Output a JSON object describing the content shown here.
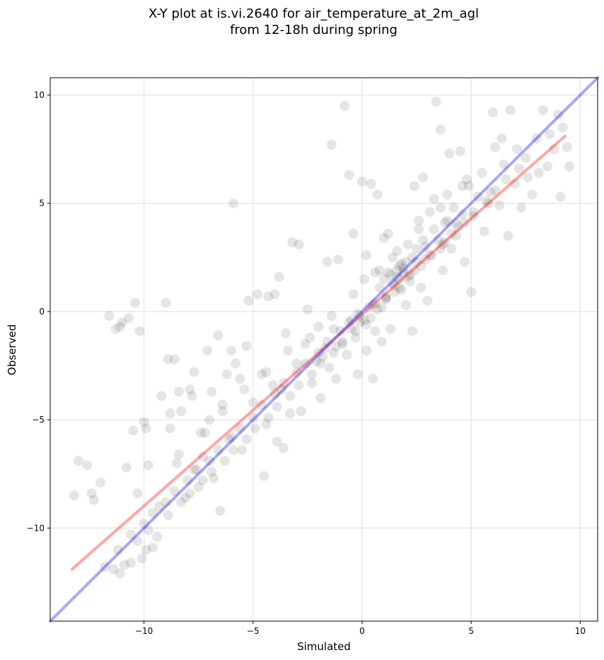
{
  "chart_data": {
    "type": "scatter",
    "title": "X-Y plot at is.vi.2640 for air_temperature_at_2m_agl",
    "subtitle": "from 12-18h during spring",
    "xlabel": "Simulated",
    "ylabel": "Observed",
    "xlim": [
      -14.3,
      10.8
    ],
    "ylim": [
      -14.3,
      10.8
    ],
    "xticks": [
      -10,
      -5,
      0,
      5,
      10
    ],
    "yticks": [
      -10,
      -5,
      0,
      5,
      10
    ],
    "xtick_labels": [
      "−10",
      "−5",
      "0",
      "5",
      "10"
    ],
    "ytick_labels": [
      "−10",
      "−5",
      "0",
      "5",
      "10"
    ],
    "grid": true,
    "point_color": "#000000",
    "point_opacity": 0.1,
    "series": [
      {
        "type": "scatter",
        "points": [
          [
            -13.2,
            -8.5
          ],
          [
            -13.0,
            -6.9
          ],
          [
            -12.6,
            -7.1
          ],
          [
            -12.4,
            -8.4
          ],
          [
            -12.3,
            -8.7
          ],
          [
            -12.0,
            -7.9
          ],
          [
            -11.8,
            -11.8
          ],
          [
            -11.6,
            -0.2
          ],
          [
            -11.4,
            -11.9
          ],
          [
            -11.3,
            -0.8
          ],
          [
            -11.1,
            -12.1
          ],
          [
            -11.1,
            -0.7
          ],
          [
            -11.0,
            -0.5
          ],
          [
            -10.9,
            -11.7
          ],
          [
            -10.8,
            -7.2
          ],
          [
            -10.7,
            -0.3
          ],
          [
            -10.6,
            -11.6
          ],
          [
            -10.5,
            -5.5
          ],
          [
            -10.4,
            0.4
          ],
          [
            -10.3,
            -8.4
          ],
          [
            -10.2,
            -0.9
          ],
          [
            -10.1,
            -11.4
          ],
          [
            -10.0,
            -5.1
          ],
          [
            -9.9,
            -11.0
          ],
          [
            -9.9,
            -5.4
          ],
          [
            -9.8,
            -7.1
          ],
          [
            -9.6,
            -10.9
          ],
          [
            -9.4,
            -10.4
          ],
          [
            -9.3,
            -9.0
          ],
          [
            -9.2,
            -3.9
          ],
          [
            -9.0,
            0.4
          ],
          [
            -8.9,
            -2.2
          ],
          [
            -8.8,
            -4.7
          ],
          [
            -8.8,
            -5.4
          ],
          [
            -8.6,
            -2.2
          ],
          [
            -8.5,
            -7.0
          ],
          [
            -8.4,
            -3.7
          ],
          [
            -8.3,
            -4.6
          ],
          [
            -8.1,
            -8.6
          ],
          [
            -7.9,
            -3.6
          ],
          [
            -7.8,
            -3.9
          ],
          [
            -7.7,
            -7.3
          ],
          [
            -7.7,
            -2.8
          ],
          [
            -7.5,
            -8.1
          ],
          [
            -7.3,
            -6.7
          ],
          [
            -7.2,
            -5.6
          ],
          [
            -7.1,
            -1.8
          ],
          [
            -7.0,
            -5.0
          ],
          [
            -6.9,
            -3.7
          ],
          [
            -6.8,
            -7.7
          ],
          [
            -6.6,
            -1.1
          ],
          [
            -6.5,
            -9.2
          ],
          [
            -6.4,
            -4.3
          ],
          [
            -6.2,
            -2.9
          ],
          [
            -6.1,
            -5.9
          ],
          [
            -6.0,
            -1.8
          ],
          [
            -5.9,
            5.0
          ],
          [
            -5.8,
            -2.4
          ],
          [
            -5.6,
            -3.1
          ],
          [
            -5.5,
            -6.4
          ],
          [
            -5.3,
            -1.6
          ],
          [
            -5.2,
            0.5
          ],
          [
            -5.0,
            -4.2
          ],
          [
            -4.8,
            0.8
          ],
          [
            -4.6,
            -2.9
          ],
          [
            -4.5,
            -7.6
          ],
          [
            -4.4,
            -5.2
          ],
          [
            -4.3,
            0.7
          ],
          [
            -4.1,
            -3.4
          ],
          [
            -4.0,
            0.8
          ],
          [
            -3.9,
            -6.0
          ],
          [
            -3.8,
            1.6
          ],
          [
            -3.7,
            -3.6
          ],
          [
            -3.6,
            -6.3
          ],
          [
            -3.5,
            -1.0
          ],
          [
            -3.3,
            -4.7
          ],
          [
            -3.2,
            3.2
          ],
          [
            -3.0,
            -2.4
          ],
          [
            -2.9,
            3.1
          ],
          [
            -2.8,
            -4.6
          ],
          [
            -2.6,
            -1.5
          ],
          [
            -2.5,
            0.1
          ],
          [
            -2.3,
            -3.3
          ],
          [
            -2.1,
            -2.3
          ],
          [
            -2.0,
            -0.7
          ],
          [
            -1.9,
            -4.0
          ],
          [
            -1.7,
            -1.7
          ],
          [
            -1.6,
            2.3
          ],
          [
            -1.5,
            -2.6
          ],
          [
            -1.4,
            7.7
          ],
          [
            -1.3,
            -0.8
          ],
          [
            -1.2,
            -3.1
          ],
          [
            -1.1,
            2.4
          ],
          [
            -0.9,
            -1.5
          ],
          [
            -0.8,
            9.5
          ],
          [
            -0.7,
            -2.0
          ],
          [
            -0.6,
            6.3
          ],
          [
            -0.5,
            -0.4
          ],
          [
            -0.4,
            3.6
          ],
          [
            -0.3,
            -1.2
          ],
          [
            -0.2,
            -2.9
          ],
          [
            -0.1,
            -0.5
          ],
          [
            0.0,
            6.0
          ],
          [
            0.1,
            1.5
          ],
          [
            0.2,
            -1.8
          ],
          [
            0.3,
            0.2
          ],
          [
            0.4,
            5.9
          ],
          [
            0.5,
            -3.1
          ],
          [
            0.6,
            -0.9
          ],
          [
            0.7,
            5.4
          ],
          [
            0.8,
            1.1
          ],
          [
            0.9,
            -1.4
          ],
          [
            1.0,
            3.4
          ],
          [
            1.1,
            0.6
          ],
          [
            1.2,
            1.8
          ],
          [
            1.3,
            -0.8
          ],
          [
            1.4,
            2.5
          ],
          [
            1.5,
            0.9
          ],
          [
            1.6,
            1.6
          ],
          [
            1.7,
            2.1
          ],
          [
            1.8,
            1.0
          ],
          [
            1.9,
            2.0
          ],
          [
            2.0,
            0.3
          ],
          [
            2.1,
            3.1
          ],
          [
            2.2,
            1.4
          ],
          [
            2.3,
            -0.9
          ],
          [
            2.4,
            5.8
          ],
          [
            2.5,
            2.3
          ],
          [
            2.6,
            4.2
          ],
          [
            2.7,
            1.1
          ],
          [
            2.8,
            6.2
          ],
          [
            2.9,
            3.0
          ],
          [
            3.0,
            0.5
          ],
          [
            3.1,
            4.6
          ],
          [
            3.2,
            2.6
          ],
          [
            3.3,
            5.2
          ],
          [
            3.4,
            9.7
          ],
          [
            3.5,
            3.3
          ],
          [
            3.6,
            8.4
          ],
          [
            3.7,
            1.9
          ],
          [
            3.8,
            4.1
          ],
          [
            3.9,
            5.4
          ],
          [
            4.0,
            7.3
          ],
          [
            4.1,
            2.9
          ],
          [
            4.2,
            4.8
          ],
          [
            4.3,
            3.5
          ],
          [
            4.5,
            7.4
          ],
          [
            4.6,
            4.5
          ],
          [
            4.7,
            2.3
          ],
          [
            4.8,
            6.1
          ],
          [
            5.0,
            0.9
          ],
          [
            5.1,
            4.4
          ],
          [
            5.3,
            5.3
          ],
          [
            5.5,
            6.4
          ],
          [
            5.6,
            3.7
          ],
          [
            5.8,
            5.0
          ],
          [
            6.0,
            9.2
          ],
          [
            6.1,
            7.6
          ],
          [
            6.3,
            4.9
          ],
          [
            6.4,
            8.0
          ],
          [
            6.5,
            6.8
          ],
          [
            6.7,
            3.5
          ],
          [
            6.8,
            9.3
          ],
          [
            7.0,
            5.9
          ],
          [
            7.1,
            7.5
          ],
          [
            7.3,
            4.8
          ],
          [
            7.5,
            7.1
          ],
          [
            7.6,
            6.2
          ],
          [
            7.8,
            5.4
          ],
          [
            8.0,
            8.0
          ],
          [
            8.1,
            6.4
          ],
          [
            8.3,
            9.3
          ],
          [
            8.5,
            6.7
          ],
          [
            8.6,
            8.2
          ],
          [
            8.8,
            7.5
          ],
          [
            9.0,
            9.1
          ],
          [
            9.1,
            5.3
          ],
          [
            9.2,
            8.5
          ],
          [
            9.4,
            7.6
          ],
          [
            9.5,
            6.7
          ],
          [
            4.9,
            5.8
          ],
          [
            5.9,
            5.5
          ],
          [
            6.6,
            6.1
          ],
          [
            7.2,
            6.6
          ],
          [
            3.8,
            3.2
          ],
          [
            4.4,
            3.9
          ],
          [
            2.9,
            2.4
          ],
          [
            3.6,
            2.9
          ],
          [
            1.5,
            1.2
          ],
          [
            2.2,
            1.7
          ],
          [
            0.6,
            0.4
          ],
          [
            1.1,
            0.7
          ],
          [
            -0.6,
            -0.5
          ],
          [
            -0.2,
            -0.1
          ],
          [
            -1.6,
            -1.4
          ],
          [
            -1.0,
            -0.9
          ],
          [
            -2.6,
            -2.4
          ],
          [
            -2.0,
            -1.9
          ],
          [
            -3.6,
            -3.3
          ],
          [
            -3.0,
            -2.8
          ],
          [
            -4.6,
            -4.3
          ],
          [
            -4.0,
            -3.8
          ],
          [
            -5.6,
            -5.4
          ],
          [
            -5.0,
            -4.9
          ],
          [
            -6.6,
            -6.4
          ],
          [
            -6.0,
            -5.8
          ],
          [
            -7.6,
            -7.3
          ],
          [
            -7.0,
            -6.9
          ],
          [
            -8.6,
            -8.3
          ],
          [
            -8.0,
            -7.8
          ],
          [
            -9.6,
            -9.3
          ],
          [
            -9.0,
            -8.8
          ],
          [
            -10.6,
            -10.3
          ],
          [
            -10.0,
            -9.8
          ],
          [
            -11.2,
            -11.0
          ],
          [
            -10.3,
            -10.6
          ],
          [
            -9.8,
            -10.1
          ],
          [
            -8.3,
            -8.8
          ],
          [
            -7.3,
            -7.8
          ],
          [
            -6.3,
            -6.9
          ],
          [
            -5.3,
            -5.9
          ],
          [
            -4.3,
            -4.9
          ],
          [
            -3.3,
            -3.9
          ],
          [
            -2.3,
            -2.9
          ],
          [
            -1.3,
            -1.9
          ],
          [
            -0.3,
            -0.9
          ],
          [
            0.7,
            0.1
          ],
          [
            1.7,
            1.1
          ],
          [
            2.7,
            2.1
          ],
          [
            3.7,
            3.1
          ],
          [
            4.7,
            4.1
          ],
          [
            5.7,
            5.1
          ],
          [
            -8.9,
            -9.4
          ],
          [
            -7.9,
            -8.4
          ],
          [
            -6.9,
            -7.4
          ],
          [
            -5.9,
            -6.4
          ],
          [
            -4.9,
            -5.4
          ],
          [
            -3.9,
            -4.4
          ],
          [
            -2.9,
            -3.4
          ],
          [
            -1.9,
            -2.4
          ],
          [
            -0.9,
            -1.4
          ],
          [
            0.1,
            -0.4
          ],
          [
            1.1,
            0.6
          ],
          [
            2.1,
            1.6
          ],
          [
            3.1,
            2.6
          ],
          [
            4.1,
            3.6
          ],
          [
            5.1,
            4.6
          ],
          [
            6.1,
            5.6
          ],
          [
            -2.4,
            -1.2
          ],
          [
            -1.4,
            -0.2
          ],
          [
            -0.4,
            0.8
          ],
          [
            0.6,
            1.8
          ],
          [
            1.6,
            2.8
          ],
          [
            2.6,
            3.8
          ],
          [
            3.6,
            4.8
          ],
          [
            4.6,
            5.8
          ],
          [
            -4.4,
            -2.8
          ],
          [
            -3.4,
            -1.8
          ],
          [
            -6.4,
            -4.6
          ],
          [
            -5.4,
            -3.6
          ],
          [
            -8.4,
            -6.6
          ],
          [
            -7.4,
            -5.6
          ],
          [
            0.2,
            2.6
          ],
          [
            1.2,
            3.6
          ],
          [
            1.8,
            2.2
          ],
          [
            1.9,
            1.8
          ],
          [
            1.7,
            1.5
          ],
          [
            2.0,
            2.3
          ],
          [
            1.6,
            1.9
          ],
          [
            1.4,
            1.3
          ],
          [
            1.3,
            1.7
          ],
          [
            2.3,
            2.5
          ],
          [
            0.4,
            -0.3
          ],
          [
            0.2,
            -0.6
          ],
          [
            -0.1,
            -0.2
          ],
          [
            0.5,
            0.3
          ],
          [
            0.9,
            0.2
          ],
          [
            -0.5,
            -0.8
          ],
          [
            -1.2,
            -1.6
          ],
          [
            -1.8,
            -2.1
          ],
          [
            2.8,
            3.3
          ],
          [
            3.3,
            3.8
          ],
          [
            3.9,
            4.2
          ],
          [
            4.3,
            4.1
          ],
          [
            2.4,
            1.9
          ],
          [
            2.5,
            2.9
          ],
          [
            1.0,
            1.5
          ],
          [
            0.8,
            1.9
          ]
        ]
      },
      {
        "type": "line",
        "name": "",
        "color": "#ff0000",
        "points": [
          [
            -13.3,
            -11.9
          ],
          [
            9.3,
            8.1
          ]
        ]
      },
      {
        "type": "line",
        "name": "",
        "color": "#0000ff",
        "points": [
          [
            -14.3,
            -14.3
          ],
          [
            10.8,
            10.8
          ]
        ]
      }
    ]
  }
}
